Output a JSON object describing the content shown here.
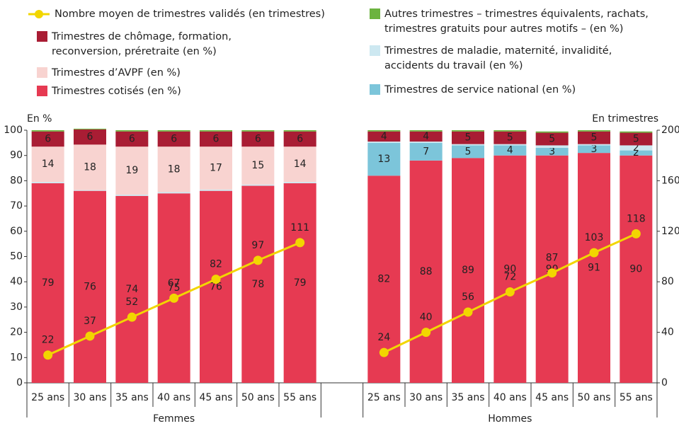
{
  "chart_data": {
    "type": "stacked-bar-line",
    "y_label": "En %",
    "y2_label": "En trimestres",
    "categories": [
      "25 ans",
      "30 ans",
      "35 ans",
      "40 ans",
      "45 ans",
      "50 ans",
      "55 ans",
      null,
      "25 ans",
      "30 ans",
      "35 ans",
      "40 ans",
      "45 ans",
      "50 ans",
      "55 ans"
    ],
    "groups": [
      "Femmes",
      "Hommes"
    ],
    "ylim": [
      0,
      100
    ],
    "yticks": [
      0,
      10,
      20,
      30,
      40,
      50,
      60,
      70,
      80,
      90,
      100
    ],
    "y2lim": [
      0,
      200
    ],
    "y2ticks": [
      0,
      40,
      80,
      120,
      160,
      200
    ],
    "series": [
      {
        "name": "Nombre moyen de trimestres validés (en trimestres)",
        "type": "line",
        "axis": "y2",
        "color": "#f2d600",
        "values": [
          22,
          37,
          52,
          67,
          82,
          97,
          111,
          null,
          24,
          40,
          56,
          72,
          87,
          103,
          118
        ]
      },
      {
        "name": "Trimestres de chômage, formation, reconversion, préretraite (en %)",
        "color": "#a91d34",
        "values": [
          6,
          6,
          6,
          6,
          6,
          6,
          6,
          null,
          4,
          4,
          5,
          5,
          5,
          5,
          5
        ]
      },
      {
        "name": "Trimestres d’AVPF (en %)",
        "color": "#f8d3d0",
        "values": [
          14,
          18,
          19,
          18,
          17,
          15,
          14,
          null,
          null,
          null,
          null,
          null,
          null,
          null,
          null
        ]
      },
      {
        "name": "Trimestres cotisés (en %)",
        "color": "#e63a52",
        "values": [
          79,
          76,
          74,
          75,
          76,
          78,
          79,
          null,
          82,
          88,
          89,
          90,
          90,
          91,
          90
        ]
      },
      {
        "name": "Autres trimestres – trimestres équivalents, rachats, trimestres gratuits pour autres motifs – (en %)",
        "color": "#6cb33f",
        "values": [
          0.5,
          0.3,
          0.5,
          0.5,
          0.5,
          0.5,
          0.5,
          null,
          0.5,
          0.5,
          0.5,
          0.5,
          0.5,
          0.5,
          0.5
        ]
      },
      {
        "name": "Trimestres de maladie, maternité, invalidité, accidents du travail (en %)",
        "color": "#cde8f1",
        "values": [
          0.5,
          0.3,
          0.5,
          0.5,
          0.5,
          0.5,
          0.5,
          null,
          0.5,
          0.5,
          0.5,
          0.5,
          1,
          0.5,
          2
        ]
      },
      {
        "name": "Trimestres de service national (en %)",
        "color": "#7cc5da",
        "values": [
          null,
          null,
          null,
          null,
          null,
          null,
          null,
          null,
          13,
          7,
          5,
          4,
          3,
          3,
          2
        ]
      }
    ]
  }
}
